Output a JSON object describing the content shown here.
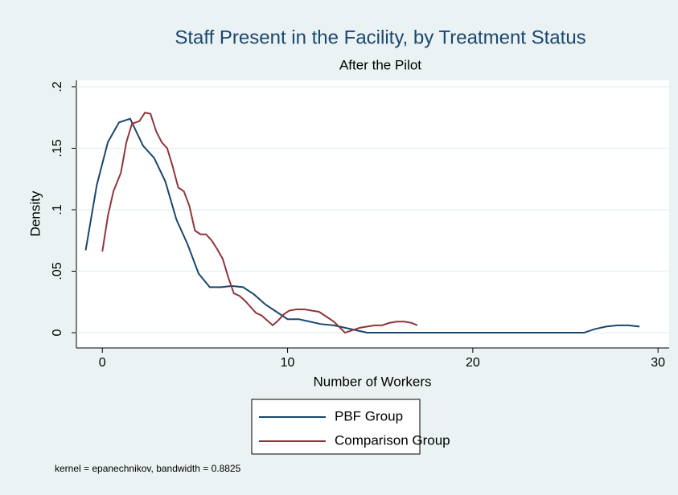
{
  "chart_data": {
    "type": "line",
    "title": "Staff Present in the Facility, by Treatment Status",
    "subtitle": "After the Pilot",
    "x_label": "Number of Workers",
    "y_label": "Density",
    "note": "kernel = epanechnikov, bandwidth = 0.8825",
    "xlim": [
      -1.4,
      30.6
    ],
    "ylim": [
      -0.0124,
      0.2052
    ],
    "xticks": [
      0,
      10,
      20,
      30
    ],
    "yticks": [
      0,
      {
        "value": 0.05,
        "label": ".05"
      },
      {
        "value": 0.1,
        "label": ".1"
      },
      {
        "value": 0.15,
        "label": ".15"
      },
      {
        "value": 0.2,
        "label": ".2"
      }
    ],
    "grid": true,
    "legend": "bottom",
    "series": [
      {
        "name": "PBF Group",
        "color": "#1a476f",
        "x": [
          -0.9,
          -0.3,
          0.3,
          0.9,
          1.5,
          2.2,
          2.8,
          3.4,
          4,
          4.6,
          5.2,
          5.8,
          6.4,
          7,
          7.6,
          8.2,
          8.8,
          9.4,
          10,
          10.6,
          11.2,
          11.8,
          12.5,
          13.1,
          13.7,
          14.3,
          20,
          26,
          26.6,
          27.2,
          27.8,
          28.4,
          29
        ],
        "values": [
          0.067,
          0.12,
          0.155,
          0.171,
          0.174,
          0.152,
          0.142,
          0.123,
          0.092,
          0.072,
          0.048,
          0.037,
          0.037,
          0.038,
          0.037,
          0.031,
          0.023,
          0.017,
          0.011,
          0.011,
          0.009,
          0.007,
          0.006,
          0.004,
          0.002,
          0,
          0,
          0,
          0.003,
          0.005,
          0.006,
          0.006,
          0.005
        ]
      },
      {
        "name": "Comparison Group",
        "color": "#90353b",
        "x": [
          0,
          0.3,
          0.6,
          1,
          1.3,
          1.6,
          2,
          2.3,
          2.6,
          2.9,
          3.2,
          3.5,
          3.8,
          4.1,
          4.4,
          4.7,
          5,
          5.3,
          5.6,
          5.9,
          6.2,
          6.5,
          6.8,
          7.1,
          7.4,
          7.7,
          8,
          8.3,
          8.6,
          8.9,
          9.2,
          9.5,
          9.8,
          10.1,
          10.5,
          10.9,
          11.3,
          11.7,
          12.1,
          12.5,
          12.9,
          13.1,
          13.5,
          13.9,
          14.3,
          14.7,
          15.1,
          15.5,
          15.9,
          16.3,
          16.7,
          17
        ],
        "values": [
          0.066,
          0.095,
          0.115,
          0.13,
          0.155,
          0.17,
          0.172,
          0.179,
          0.178,
          0.164,
          0.155,
          0.15,
          0.135,
          0.118,
          0.115,
          0.103,
          0.083,
          0.08,
          0.08,
          0.075,
          0.068,
          0.06,
          0.045,
          0.032,
          0.03,
          0.026,
          0.021,
          0.016,
          0.014,
          0.01,
          0.006,
          0.01,
          0.015,
          0.018,
          0.019,
          0.019,
          0.018,
          0.017,
          0.013,
          0.009,
          0.003,
          0,
          0.002,
          0.004,
          0.005,
          0.006,
          0.006,
          0.008,
          0.009,
          0.009,
          0.008,
          0.006
        ]
      }
    ]
  }
}
